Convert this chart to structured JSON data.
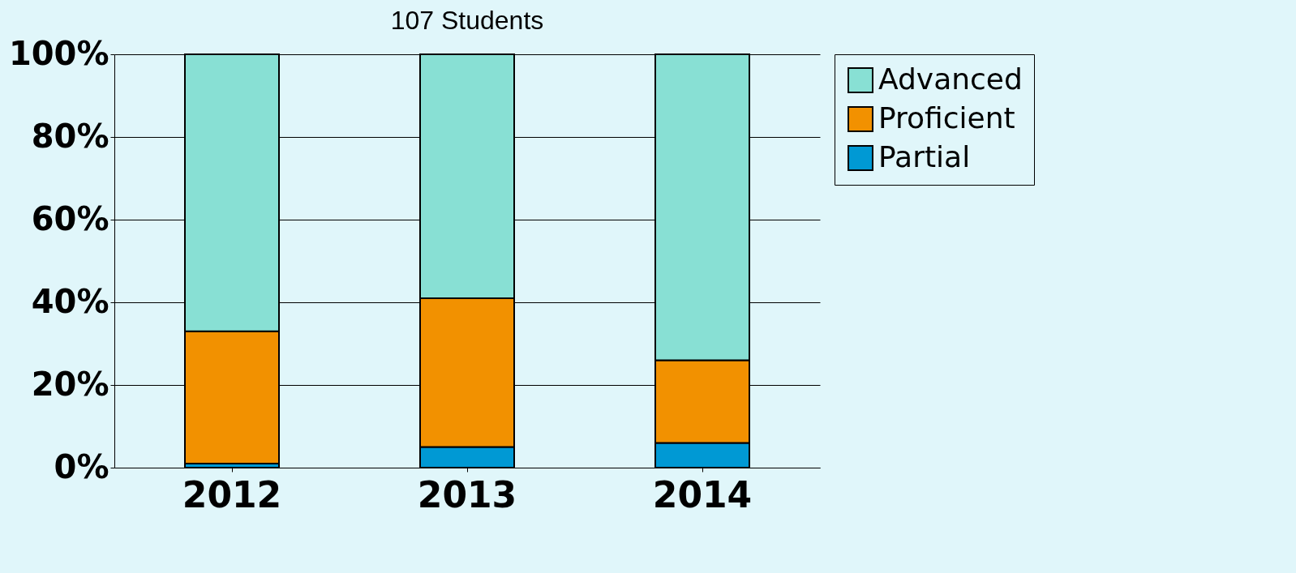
{
  "chart_data": {
    "type": "bar",
    "title": "107 Students",
    "stacked": true,
    "categories": [
      "2012",
      "2013",
      "2014"
    ],
    "series": [
      {
        "name": "Partial",
        "color": "#0099d4",
        "values": [
          1,
          5,
          6
        ]
      },
      {
        "name": "Proficient",
        "color": "#f29100",
        "values": [
          32,
          36,
          20
        ]
      },
      {
        "name": "Advanced",
        "color": "#88e0d4",
        "values": [
          67,
          59,
          74
        ]
      }
    ],
    "ylim": [
      0,
      100
    ],
    "yticks": [
      {
        "value": 0,
        "label": "0%"
      },
      {
        "value": 20,
        "label": "20%"
      },
      {
        "value": 40,
        "label": "40%"
      },
      {
        "value": 60,
        "label": "60%"
      },
      {
        "value": 80,
        "label": "80%"
      },
      {
        "value": 100,
        "label": "100%"
      }
    ],
    "grid": "y",
    "legend": "right"
  }
}
